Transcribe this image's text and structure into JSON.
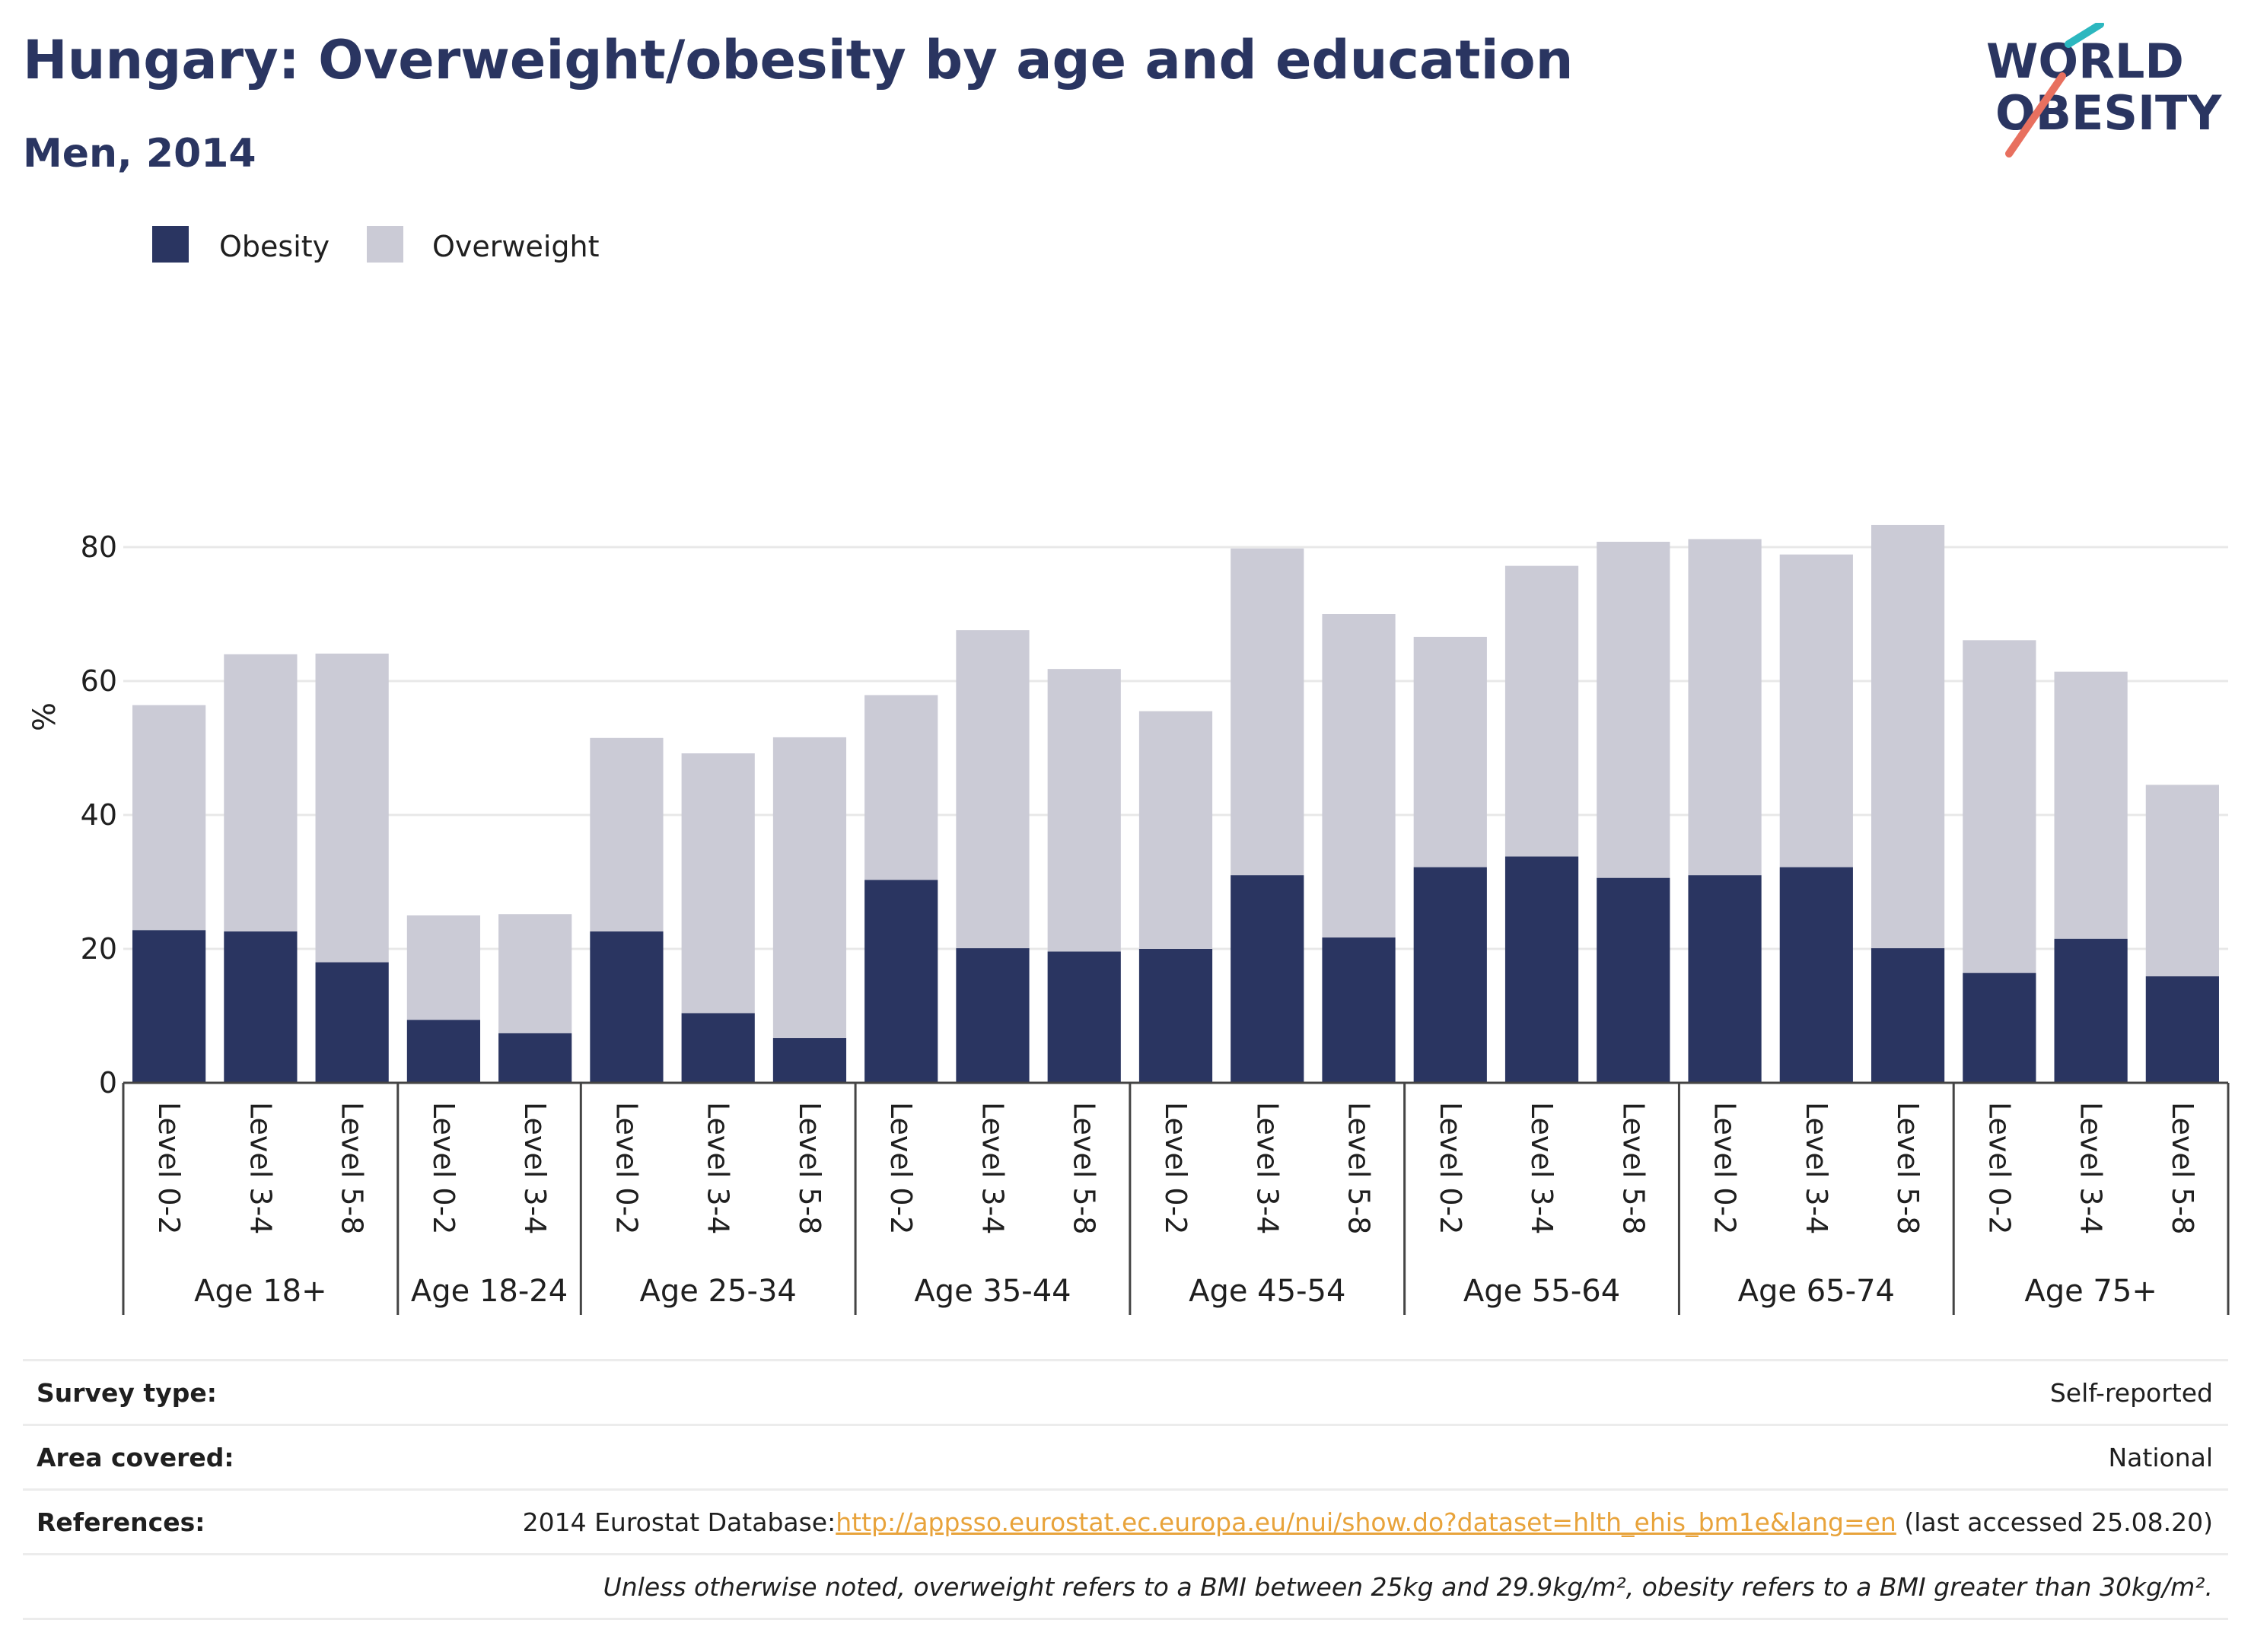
{
  "title": "Hungary: Overweight/obesity by age and education",
  "subtitle": "Men, 2014",
  "logo": {
    "line1": "WORLD",
    "line2": "OBESITY"
  },
  "colors": {
    "obesity": "#2a3561",
    "overweight": "#cbcbd6",
    "accent_teal": "#2cb7bf",
    "accent_coral": "#e8705f",
    "link": "#e8a33b"
  },
  "chart_data": {
    "type": "bar",
    "stacked": true,
    "ylabel": "%",
    "ylim": [
      0,
      90
    ],
    "yticks": [
      0,
      20,
      40,
      60,
      80
    ],
    "grid": true,
    "legend_position": "top-left",
    "groups": [
      "Age 18+",
      "Age 18-24",
      "Age 25-34",
      "Age 35-44",
      "Age 45-54",
      "Age 55-64",
      "Age 65-74",
      "Age 75+"
    ],
    "categories": [
      {
        "group": "Age 18+",
        "label": "Level 0-2"
      },
      {
        "group": "Age 18+",
        "label": "Level 3-4"
      },
      {
        "group": "Age 18+",
        "label": "Level 5-8"
      },
      {
        "group": "Age 18-24",
        "label": "Level 0-2"
      },
      {
        "group": "Age 18-24",
        "label": "Level 3-4"
      },
      {
        "group": "Age 25-34",
        "label": "Level 0-2"
      },
      {
        "group": "Age 25-34",
        "label": "Level 3-4"
      },
      {
        "group": "Age 25-34",
        "label": "Level 5-8"
      },
      {
        "group": "Age 35-44",
        "label": "Level 0-2"
      },
      {
        "group": "Age 35-44",
        "label": "Level 3-4"
      },
      {
        "group": "Age 35-44",
        "label": "Level 5-8"
      },
      {
        "group": "Age 45-54",
        "label": "Level 0-2"
      },
      {
        "group": "Age 45-54",
        "label": "Level 3-4"
      },
      {
        "group": "Age 45-54",
        "label": "Level 5-8"
      },
      {
        "group": "Age 55-64",
        "label": "Level 0-2"
      },
      {
        "group": "Age 55-64",
        "label": "Level 3-4"
      },
      {
        "group": "Age 55-64",
        "label": "Level 5-8"
      },
      {
        "group": "Age 65-74",
        "label": "Level 0-2"
      },
      {
        "group": "Age 65-74",
        "label": "Level 3-4"
      },
      {
        "group": "Age 65-74",
        "label": "Level 5-8"
      },
      {
        "group": "Age 75+",
        "label": "Level 0-2"
      },
      {
        "group": "Age 75+",
        "label": "Level 3-4"
      },
      {
        "group": "Age 75+",
        "label": "Level 5-8"
      }
    ],
    "series": [
      {
        "name": "Obesity",
        "values": [
          22.8,
          22.6,
          18.0,
          9.4,
          7.4,
          22.6,
          10.4,
          6.7,
          30.3,
          20.1,
          19.6,
          20.0,
          31.0,
          21.7,
          32.2,
          33.8,
          30.6,
          31.0,
          32.2,
          20.1,
          16.4,
          21.5,
          15.9
        ]
      },
      {
        "name": "Overweight",
        "values": [
          33.6,
          41.4,
          46.1,
          15.6,
          17.8,
          28.9,
          38.8,
          44.9,
          27.6,
          47.5,
          42.2,
          35.5,
          48.8,
          48.3,
          34.4,
          43.4,
          50.2,
          50.2,
          46.7,
          63.2,
          49.7,
          39.9,
          28.6
        ]
      }
    ]
  },
  "footer": {
    "survey_label": "Survey type:",
    "survey_value": "Self-reported",
    "area_label": "Area covered:",
    "area_value": "National",
    "references_label": "References:",
    "references_prefix": "2014 Eurostat Database:",
    "references_link": "http://appsso.eurostat.ec.europa.eu/nui/show.do?dataset=hlth_ehis_bm1e&lang=en",
    "references_suffix": " (last accessed 25.08.20)",
    "note": "Unless otherwise noted, overweight refers to a BMI between 25kg and 29.9kg/m², obesity refers to a BMI greater than 30kg/m²."
  }
}
